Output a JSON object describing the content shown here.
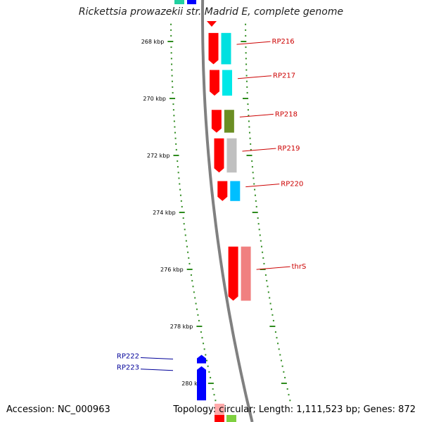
{
  "title": "Rickettsia prowazekii str. Madrid E, complete genome",
  "footer": {
    "accession": "Accession: NC_000963",
    "summary": "Topology: circular; Length: 1,111,523 bp; Genes: 872"
  },
  "colors": {
    "backbone": "#808080",
    "tick": "#2e8b1e",
    "forward_strand": "#ff0000",
    "reverse_gene": "#0000ff",
    "label_red": "#cc0000",
    "label_blue": "#000099"
  },
  "scale": {
    "unit": "kbp",
    "tick_labels": [
      {
        "kbp": 268,
        "label": "268 kbp"
      },
      {
        "kbp": 270,
        "label": "270 kbp"
      },
      {
        "kbp": 272,
        "label": "272 kbp"
      },
      {
        "kbp": 274,
        "label": "274 kbp"
      },
      {
        "kbp": 276,
        "label": "276 kbp"
      },
      {
        "kbp": 278,
        "label": "278 kbp"
      },
      {
        "kbp": 280,
        "label": "280 kbp"
      }
    ]
  },
  "genes": [
    {
      "name": "RP216",
      "start_kbp": 267.7,
      "end_kbp": 268.8,
      "strand": "+",
      "cog_color": "#00e0e0",
      "label_color": "red"
    },
    {
      "name": "RP217",
      "start_kbp": 269.0,
      "end_kbp": 269.9,
      "strand": "+",
      "cog_color": "#00e8e8",
      "label_color": "red"
    },
    {
      "name": "RP218",
      "start_kbp": 270.4,
      "end_kbp": 271.2,
      "strand": "+",
      "cog_color": "#6b8e23",
      "label_color": "red"
    },
    {
      "name": "RP219",
      "start_kbp": 271.4,
      "end_kbp": 272.6,
      "strand": "+",
      "cog_color": "#c0c0c0",
      "label_color": "red"
    },
    {
      "name": "RP220",
      "start_kbp": 272.9,
      "end_kbp": 273.6,
      "strand": "+",
      "cog_color": "#00bfff",
      "label_color": "red"
    },
    {
      "name": "thrS",
      "start_kbp": 275.2,
      "end_kbp": 277.1,
      "strand": "+",
      "cog_color": "#f08080",
      "label_color": "red"
    },
    {
      "name": "RP222",
      "start_kbp": 279.0,
      "end_kbp": 279.3,
      "strand": "-",
      "cog_color": "#0000ff",
      "label_color": "blue"
    },
    {
      "name": "RP223",
      "start_kbp": 279.4,
      "end_kbp": 280.6,
      "strand": "-",
      "cog_color": "#0000ff",
      "label_color": "blue"
    }
  ]
}
